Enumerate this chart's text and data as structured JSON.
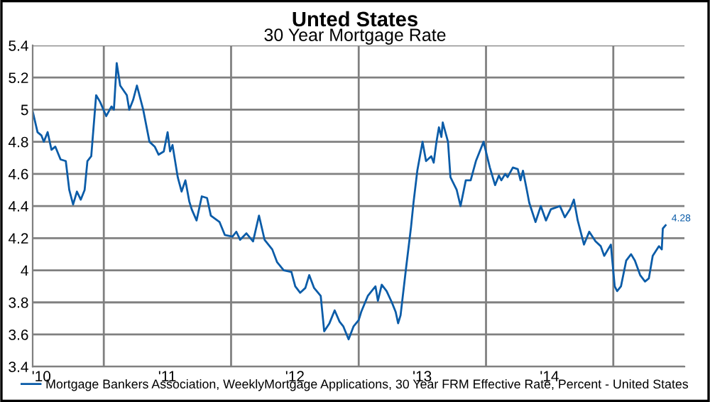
{
  "chart_data": {
    "type": "line",
    "title": "Unted States",
    "subtitle": "30 Year Mortgage Rate",
    "x": [
      "2010-06-11",
      "2010-06-25",
      "2010-07-06",
      "2010-07-13",
      "2010-07-24",
      "2010-08-04",
      "2010-08-15",
      "2010-08-30",
      "2010-09-14",
      "2010-09-24",
      "2010-10-05",
      "2010-10-16",
      "2010-10-27",
      "2010-11-07",
      "2010-11-15",
      "2010-11-26",
      "2010-12-10",
      "2010-12-21",
      "2011-01-08",
      "2011-01-23",
      "2011-01-30",
      "2011-02-07",
      "2011-02-17",
      "2011-03-08",
      "2011-03-15",
      "2011-03-26",
      "2011-04-06",
      "2011-04-24",
      "2011-05-12",
      "2011-05-27",
      "2011-06-07",
      "2011-06-22",
      "2011-07-03",
      "2011-07-10",
      "2011-07-17",
      "2011-08-01",
      "2011-08-12",
      "2011-08-23",
      "2011-09-03",
      "2011-09-10",
      "2011-09-24",
      "2011-10-09",
      "2011-10-24",
      "2011-11-04",
      "2011-11-29",
      "2011-12-14",
      "2012-01-05",
      "2012-01-16",
      "2012-01-27",
      "2012-02-14",
      "2012-03-04",
      "2012-03-21",
      "2012-04-06",
      "2012-04-28",
      "2012-05-12",
      "2012-05-31",
      "2012-06-22",
      "2012-07-03",
      "2012-07-17",
      "2012-08-01",
      "2012-08-12",
      "2012-08-26",
      "2012-09-14",
      "2012-09-24",
      "2012-10-09",
      "2012-10-24",
      "2012-11-07",
      "2012-11-18",
      "2012-12-03",
      "2012-12-17",
      "2013-01-01",
      "2013-01-08",
      "2013-01-27",
      "2013-02-18",
      "2013-02-25",
      "2013-03-08",
      "2013-03-22",
      "2013-04-06",
      "2013-04-17",
      "2013-04-24",
      "2013-05-01",
      "2013-05-16",
      "2013-05-31",
      "2013-06-07",
      "2013-06-18",
      "2013-07-03",
      "2013-07-13",
      "2013-07-28",
      "2013-08-04",
      "2013-08-12",
      "2013-08-19",
      "2013-08-26",
      "2013-08-30",
      "2013-09-14",
      "2013-09-21",
      "2013-10-09",
      "2013-10-20",
      "2013-11-04",
      "2013-11-18",
      "2013-12-03",
      "2013-12-25",
      "2014-01-12",
      "2014-01-27",
      "2014-02-07",
      "2014-02-14",
      "2014-02-25",
      "2014-03-04",
      "2014-03-19",
      "2014-04-02",
      "2014-04-10",
      "2014-04-17",
      "2014-04-28",
      "2014-05-05",
      "2014-05-23",
      "2014-06-07",
      "2014-06-22",
      "2014-07-06",
      "2014-08-01",
      "2014-08-15",
      "2014-08-30",
      "2014-09-10",
      "2014-09-21",
      "2014-10-09",
      "2014-10-24",
      "2014-11-11",
      "2014-11-26",
      "2014-12-06",
      "2014-12-25",
      "2015-01-05",
      "2015-01-12",
      "2015-01-23",
      "2015-02-07",
      "2015-02-21",
      "2015-03-04",
      "2015-03-19",
      "2015-04-02",
      "2015-04-13",
      "2015-04-24",
      "2015-05-12",
      "2015-05-20",
      "2015-05-23",
      "2015-05-31"
    ],
    "series": [
      {
        "name": "Mortgage Bankers Association, WeeklyMortgage Applications, 30 Year FRM Effective Rate, Percent - United States",
        "color": "#0b5ca8",
        "values": [
          4.99,
          4.86,
          4.84,
          4.8,
          4.86,
          4.75,
          4.77,
          4.69,
          4.68,
          4.5,
          4.41,
          4.49,
          4.44,
          4.5,
          4.68,
          4.71,
          5.09,
          5.05,
          4.96,
          5.02,
          5.0,
          5.29,
          5.15,
          5.09,
          5.0,
          5.06,
          5.15,
          5.0,
          4.8,
          4.77,
          4.72,
          4.74,
          4.86,
          4.74,
          4.78,
          4.58,
          4.49,
          4.56,
          4.43,
          4.38,
          4.31,
          4.46,
          4.45,
          4.34,
          4.3,
          4.22,
          4.21,
          4.24,
          4.19,
          4.23,
          4.18,
          4.34,
          4.19,
          4.13,
          4.05,
          4.0,
          3.99,
          3.9,
          3.86,
          3.89,
          3.97,
          3.89,
          3.84,
          3.62,
          3.67,
          3.75,
          3.68,
          3.65,
          3.57,
          3.65,
          3.69,
          3.74,
          3.84,
          3.9,
          3.81,
          3.91,
          3.87,
          3.8,
          3.74,
          3.67,
          3.72,
          4.0,
          4.27,
          4.42,
          4.62,
          4.8,
          4.68,
          4.71,
          4.67,
          4.8,
          4.89,
          4.83,
          4.92,
          4.8,
          4.58,
          4.5,
          4.4,
          4.56,
          4.56,
          4.68,
          4.8,
          4.64,
          4.53,
          4.59,
          4.56,
          4.6,
          4.58,
          4.64,
          4.63,
          4.56,
          4.62,
          4.5,
          4.42,
          4.3,
          4.4,
          4.31,
          4.38,
          4.4,
          4.33,
          4.38,
          4.44,
          4.31,
          4.16,
          4.24,
          4.18,
          4.15,
          4.09,
          4.16,
          3.9,
          3.87,
          3.9,
          4.06,
          4.1,
          4.06,
          3.97,
          3.93,
          3.95,
          4.09,
          4.15,
          4.13,
          4.26,
          4.28
        ]
      }
    ],
    "annotations": [
      {
        "text": "4.28",
        "x": "2015-05-31",
        "y": 4.28
      }
    ],
    "xlim": [
      "2010-06-11",
      "2015-07-24"
    ],
    "xticks": [
      {
        "value": "2010-07-06",
        "label": "'10"
      },
      {
        "value": "2011-01-01",
        "label": null
      },
      {
        "value": "2011-07-02",
        "label": "'11"
      },
      {
        "value": "2012-01-01",
        "label": null
      },
      {
        "value": "2012-07-02",
        "label": "'12"
      },
      {
        "value": "2013-01-01",
        "label": null
      },
      {
        "value": "2013-07-02",
        "label": "'13"
      },
      {
        "value": "2014-01-01",
        "label": null
      },
      {
        "value": "2014-07-02",
        "label": "'14"
      },
      {
        "value": "2015-01-01",
        "label": null
      }
    ],
    "ylim": [
      3.4,
      5.4
    ],
    "yticks": [
      3.4,
      3.6,
      3.8,
      4,
      4.2,
      4.4,
      4.6,
      4.8,
      5,
      5.2,
      5.4
    ],
    "grid": true,
    "legend": "bottom",
    "marker": "none",
    "line_style": "solid"
  }
}
